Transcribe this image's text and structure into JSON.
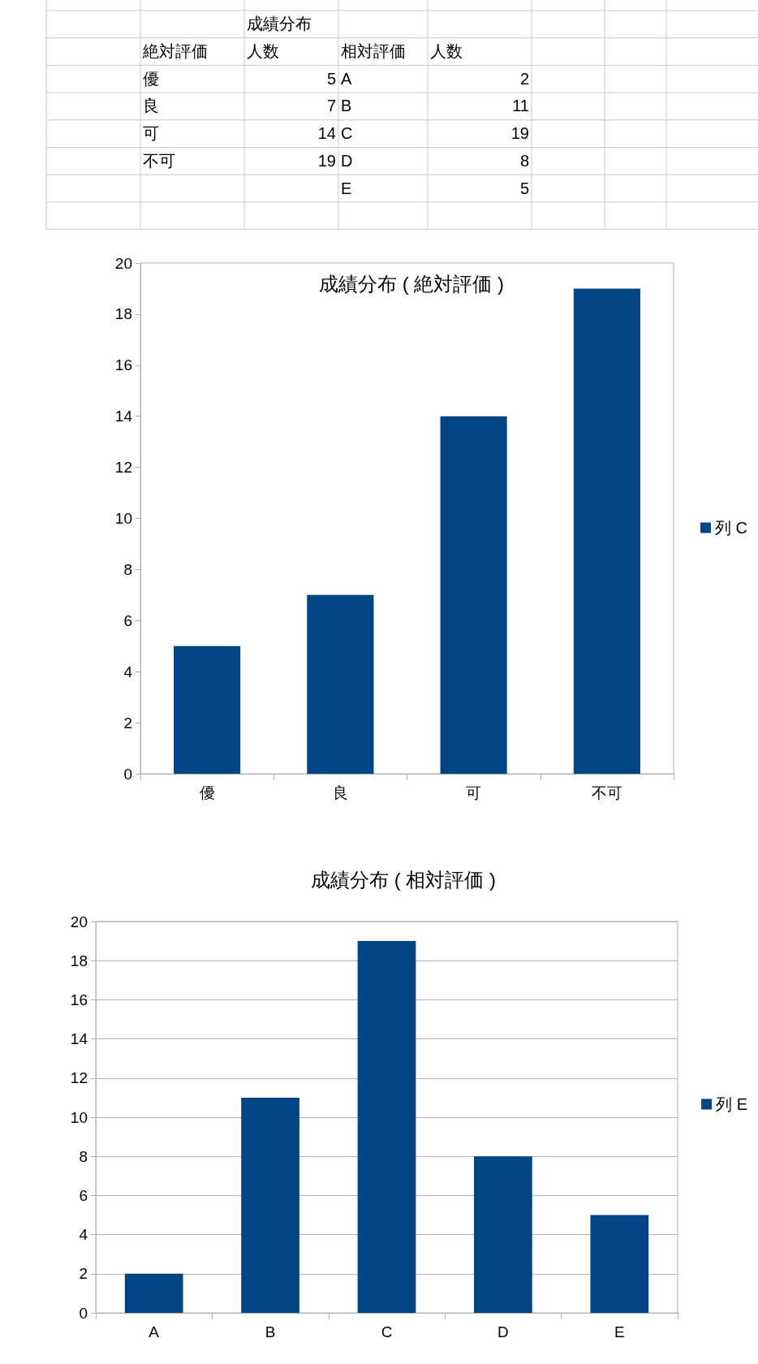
{
  "chart_data": [
    {
      "type": "other",
      "title": "成績分布",
      "xlabel": "絶対評価",
      "ylabel": "人数",
      "categories": [
        "優",
        "良",
        "可",
        "不可"
      ],
      "values": [
        5,
        7,
        14,
        19
      ],
      "data_labels": true
    },
    {
      "type": "other",
      "xlabel": "相対評価",
      "ylabel": "人数",
      "categories": [
        "A",
        "B",
        "C",
        "D",
        "E"
      ],
      "values": [
        2,
        11,
        19,
        8,
        5
      ],
      "data_labels": true
    },
    {
      "type": "bar",
      "title": "成績分布 ( 絶対評価 )",
      "categories": [
        "優",
        "良",
        "可",
        "不可"
      ],
      "series": [
        {
          "name": "列 C",
          "color": "#004586",
          "values": [
            5,
            7,
            14,
            19
          ]
        }
      ],
      "ylim": [
        0,
        20
      ],
      "yticks": [
        0,
        2,
        4,
        6,
        8,
        10,
        12,
        14,
        16,
        18,
        20
      ],
      "grid": false,
      "legend": "right"
    },
    {
      "type": "bar",
      "title": "成績分布 ( 相対評価 )",
      "categories": [
        "A",
        "B",
        "C",
        "D",
        "E"
      ],
      "series": [
        {
          "name": "列 E",
          "color": "#004586",
          "values": [
            2,
            11,
            19,
            8,
            5
          ]
        }
      ],
      "ylim": [
        0,
        20
      ],
      "yticks": [
        0,
        2,
        4,
        6,
        8,
        10,
        12,
        14,
        16,
        18,
        20
      ],
      "grid": "y",
      "legend": "right"
    }
  ]
}
